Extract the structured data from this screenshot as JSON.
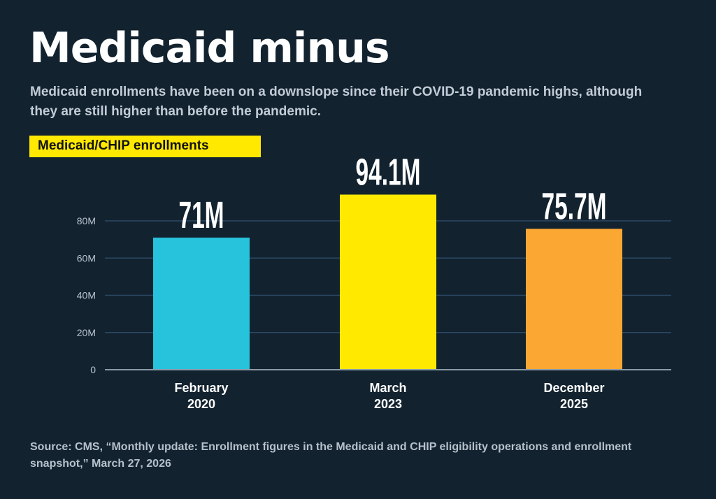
{
  "title": "Medicaid minus",
  "subtitle": "Medicaid enrollments have been on a downslope since their COVID-19 pandemic highs, although they are still higher than before the pandemic.",
  "source": "Source: CMS, “Monthly update: Enrollment figures in the Medicaid and CHIP eligibility operations and enrollment snapshot,” March 27, 2026",
  "chart_data": {
    "type": "bar",
    "categories": [
      [
        "February",
        "2020"
      ],
      [
        "March",
        "2023"
      ],
      [
        "December",
        "2025"
      ]
    ],
    "series": [
      {
        "name": "Medicaid/CHIP enrollments",
        "values": [
          71,
          94.1,
          75.7
        ]
      }
    ],
    "data_labels": [
      "71M",
      "94.1M",
      "75.7M"
    ],
    "bar_colors": [
      "#27c2dc",
      "#ffe900",
      "#fba733"
    ],
    "yticks": [
      0,
      20,
      40,
      60,
      80
    ],
    "ytick_labels": [
      "0",
      "20M",
      "40M",
      "60M",
      "80M"
    ],
    "ylim": [
      0,
      100
    ],
    "unit": "millions",
    "grid": true,
    "legend": "top-left"
  }
}
